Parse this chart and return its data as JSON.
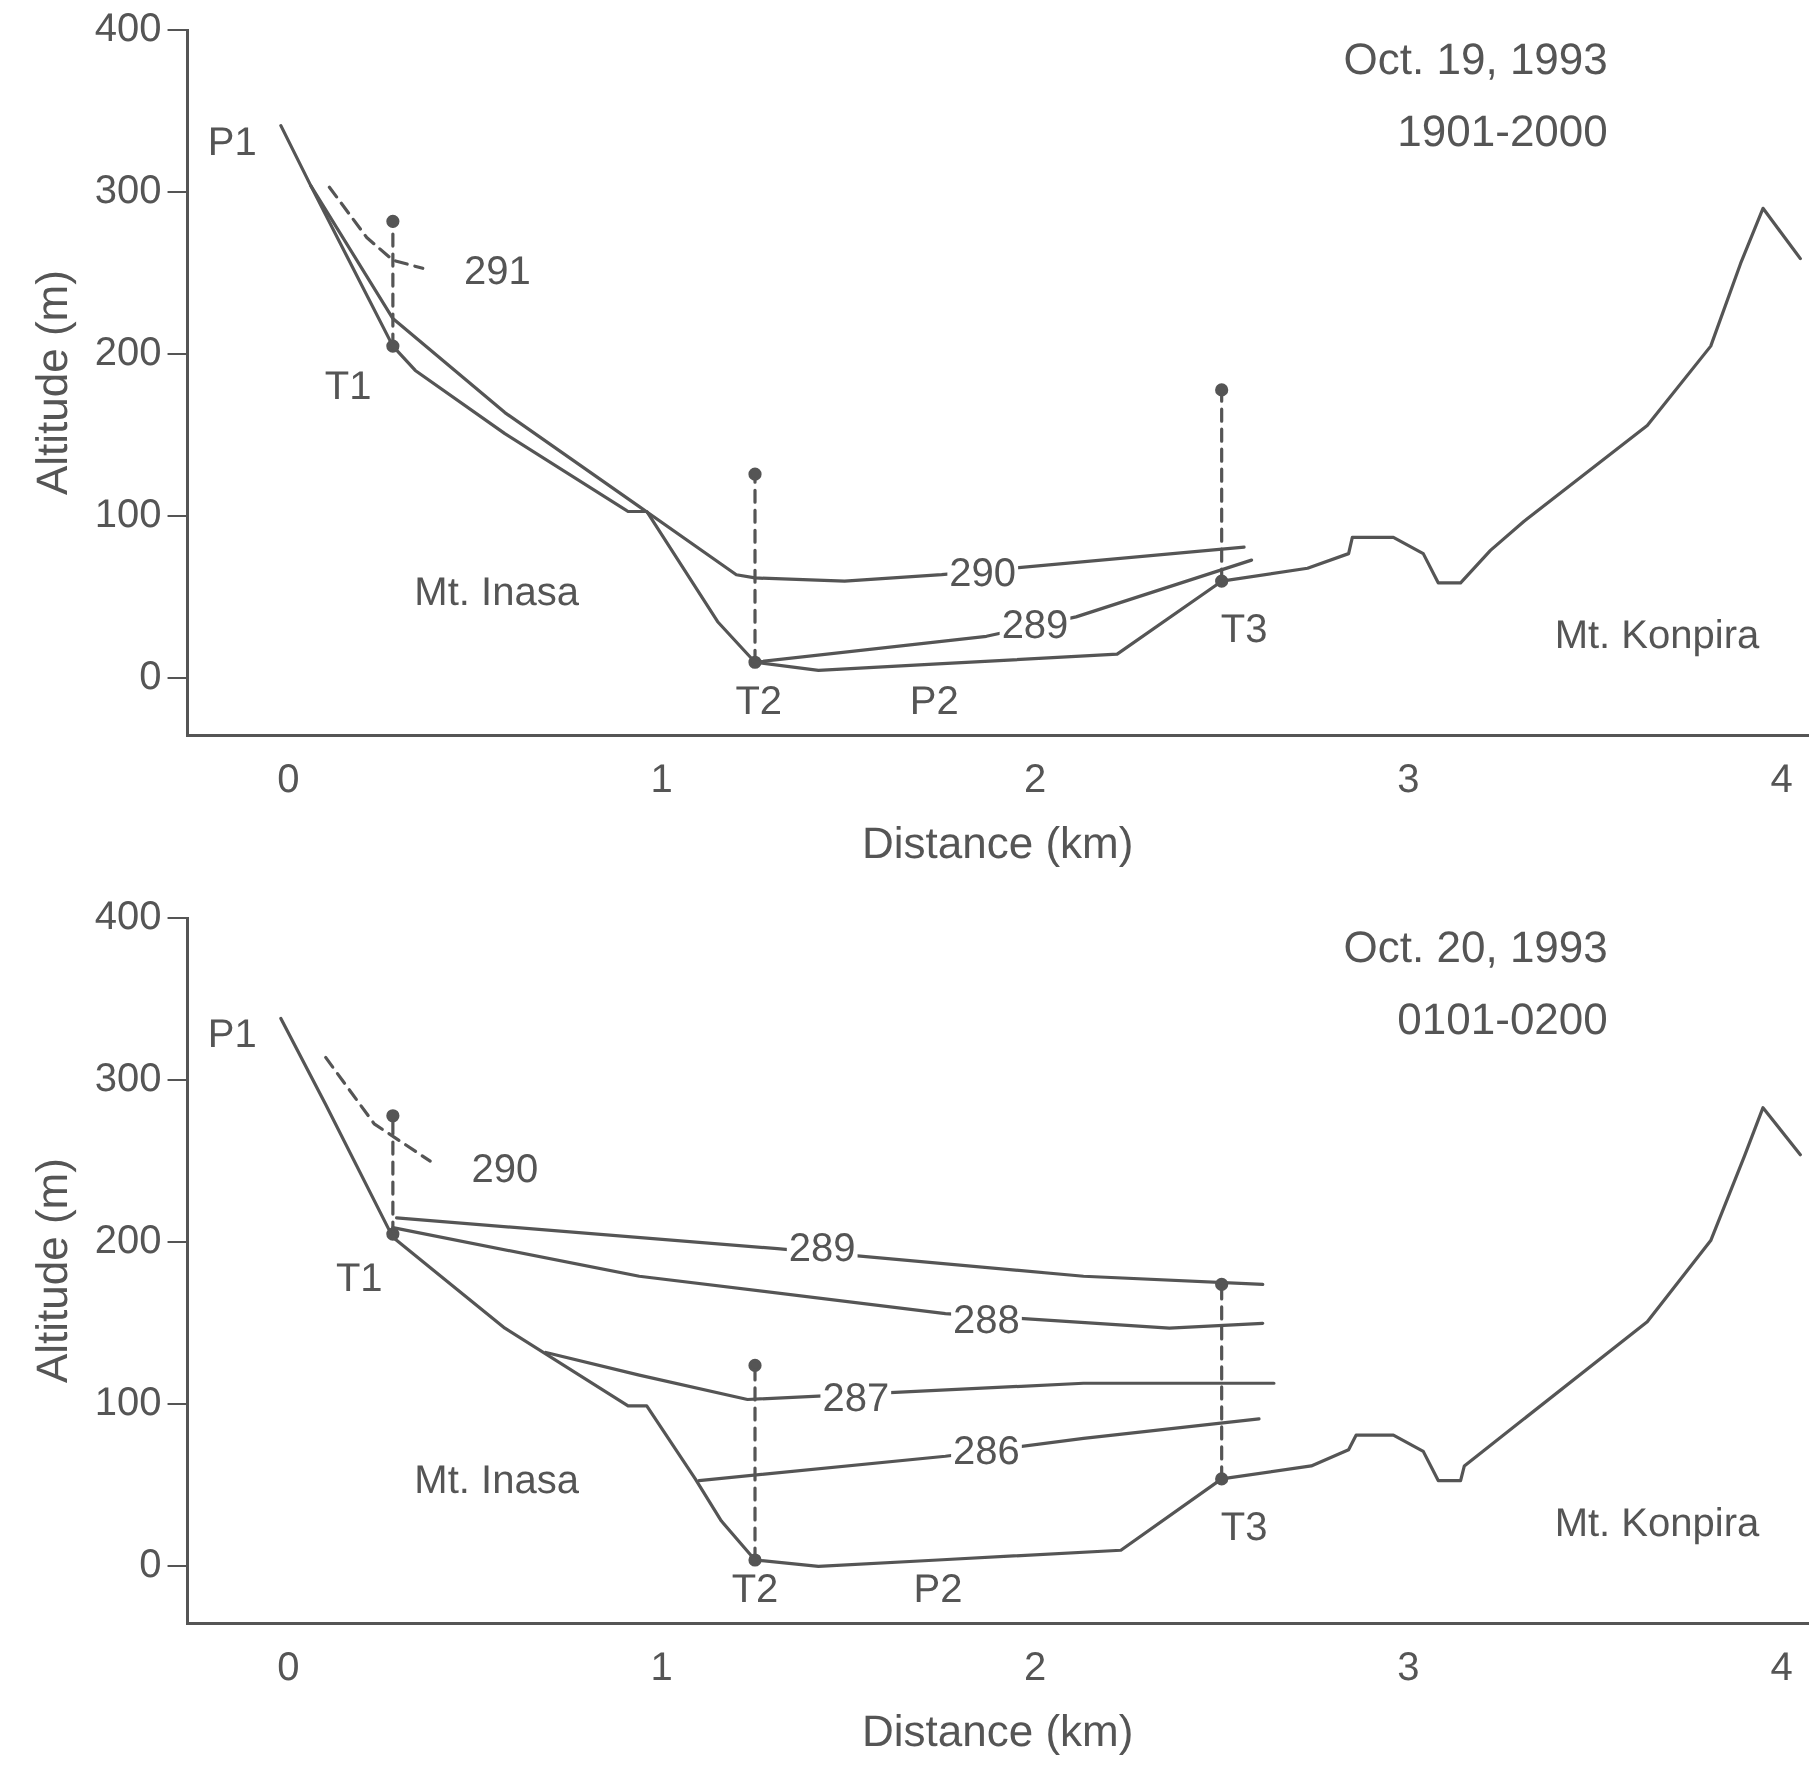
{
  "chart_data": [
    {
      "type": "line",
      "title": "Oct. 19, 1993",
      "subtitle": "1901-2000",
      "xlabel": "Distance (km)",
      "ylabel": "Altitude (m)",
      "xlim": [
        -0.27,
        4.07
      ],
      "ylim": [
        -35,
        400
      ],
      "xticks": [
        0,
        1,
        2,
        3,
        4
      ],
      "yticks": [
        0,
        100,
        200,
        300,
        400
      ],
      "grid": false,
      "legend": false,
      "series": [
        {
          "color": "#555555",
          "line_style": "solid",
          "marker": "none",
          "x": [
            -0.02,
            0.06,
            0.28,
            0.34,
            0.58,
            0.91,
            0.96,
            1.15,
            1.25,
            1.42,
            1.74,
            2.22,
            2.5,
            2.73,
            2.84,
            2.85,
            2.96,
            3.04,
            3.08,
            3.14,
            3.22,
            3.31,
            3.64,
            3.81,
            3.89,
            3.95,
            4.05
          ],
          "values": [
            341,
            304,
            205,
            190,
            151,
            103,
            103,
            35,
            10,
            5,
            9,
            15,
            60,
            68,
            77,
            87,
            87,
            77,
            59,
            59,
            79,
            97,
            156,
            205,
            256,
            290,
            259
          ]
        },
        {
          "color": "#555555",
          "line_style": "dashed",
          "marker": "none",
          "x": [
            0.11,
            0.21,
            0.28,
            0.36
          ],
          "values": [
            303,
            272,
            258,
            253
          ]
        },
        {
          "color": "#555555",
          "line_style": "solid",
          "marker": "none",
          "x": [
            0.06,
            0.28,
            0.58,
            0.94,
            1.2,
            1.25,
            1.49,
            1.75,
            2.56
          ],
          "values": [
            304,
            222,
            164,
            106,
            64,
            62,
            60,
            64,
            81
          ]
        },
        {
          "color": "#555555",
          "line_style": "solid",
          "marker": "none",
          "x": [
            1.25,
            1.87,
            2.11,
            2.58
          ],
          "values": [
            10,
            26,
            38,
            73
          ]
        },
        {
          "color": "#555555",
          "line_style": "dashed",
          "marker": "circle",
          "x": [
            0.28,
            0.28
          ],
          "values": [
            205,
            282
          ]
        },
        {
          "color": "#555555",
          "line_style": "dashed",
          "marker": "circle",
          "x": [
            1.25,
            1.25
          ],
          "values": [
            10,
            126
          ]
        },
        {
          "color": "#555555",
          "line_style": "dashed",
          "marker": "circle",
          "x": [
            2.5,
            2.5
          ],
          "values": [
            60,
            178
          ]
        }
      ],
      "annotations": [
        {
          "text": "P1",
          "x": -0.15,
          "y": 330
        },
        {
          "text": "T1",
          "x": 0.16,
          "y": 179
        },
        {
          "text": "T2",
          "x": 1.26,
          "y": -15
        },
        {
          "text": "P2",
          "x": 1.73,
          "y": -15
        },
        {
          "text": "T3",
          "x": 2.56,
          "y": 29
        },
        "Mt. Inasa",
        "Mt. Konpira",
        {
          "text": "291",
          "x": 0.56,
          "y": 250
        },
        {
          "text": "290",
          "x": 1.86,
          "y": 64
        },
        {
          "text": "289",
          "x": 2.0,
          "y": 32
        }
      ]
    },
    {
      "type": "line",
      "title": "Oct. 20, 1993",
      "subtitle": "0101-0200",
      "xlabel": "Distance (km)",
      "ylabel": "Altitude (m)",
      "xlim": [
        -0.27,
        4.07
      ],
      "ylim": [
        -35,
        400
      ],
      "xticks": [
        0,
        1,
        2,
        3,
        4
      ],
      "yticks": [
        0,
        100,
        200,
        300,
        400
      ],
      "grid": false,
      "legend": false,
      "series": [
        {
          "color": "#555555",
          "line_style": "solid",
          "marker": "none",
          "x": [
            -0.02,
            0.1,
            0.28,
            0.58,
            0.91,
            0.96,
            1.09,
            1.16,
            1.25,
            1.42,
            1.74,
            2.23,
            2.5,
            2.74,
            2.84,
            2.86,
            2.96,
            3.04,
            3.08,
            3.14,
            3.15,
            3.64,
            3.81,
            3.9,
            3.95,
            4.05
          ],
          "values": [
            338,
            285,
            203,
            147,
            99,
            99,
            54,
            28,
            4,
            0,
            4,
            10,
            54,
            62,
            72,
            81,
            81,
            71,
            53,
            53,
            62,
            151,
            201,
            253,
            283,
            254
          ]
        },
        {
          "color": "#555555",
          "line_style": "dashed",
          "marker": "none",
          "x": [
            0.1,
            0.23,
            0.38
          ],
          "values": [
            314,
            273,
            250
          ]
        },
        {
          "color": "#555555",
          "line_style": "solid",
          "marker": "none",
          "x": [
            0.29,
            1.31,
            2.13,
            2.61
          ],
          "values": [
            215,
            196,
            179,
            174
          ]
        },
        {
          "color": "#555555",
          "line_style": "solid",
          "marker": "none",
          "x": [
            0.28,
            0.94,
            1.76,
            2.36,
            2.61
          ],
          "values": [
            209,
            179,
            156,
            147,
            150
          ]
        },
        {
          "color": "#555555",
          "line_style": "solid",
          "marker": "none",
          "x": [
            0.69,
            0.94,
            1.23,
            2.13,
            2.64
          ],
          "values": [
            132,
            118,
            103,
            113,
            113
          ]
        },
        {
          "color": "#555555",
          "line_style": "solid",
          "marker": "none",
          "x": [
            1.1,
            1.76,
            2.13,
            2.6
          ],
          "values": [
            53,
            68,
            79,
            91
          ]
        },
        {
          "color": "#555555",
          "line_style": "dashed",
          "marker": "circle",
          "x": [
            0.28,
            0.28
          ],
          "values": [
            205,
            278
          ]
        },
        {
          "color": "#555555",
          "line_style": "dashed",
          "marker": "circle",
          "x": [
            1.25,
            1.25
          ],
          "values": [
            4,
            124
          ]
        },
        {
          "color": "#555555",
          "line_style": "dashed",
          "marker": "circle",
          "x": [
            2.5,
            2.5
          ],
          "values": [
            54,
            174
          ]
        }
      ],
      "annotations": [
        {
          "text": "P1",
          "x": -0.15,
          "y": 327
        },
        {
          "text": "T1",
          "x": 0.19,
          "y": 177
        },
        {
          "text": "T2",
          "x": 1.25,
          "y": -15
        },
        {
          "text": "P2",
          "x": 1.74,
          "y": -15
        },
        {
          "text": "T3",
          "x": 2.56,
          "y": 23
        },
        "Mt. Inasa",
        "Mt. Konpira",
        {
          "text": "290",
          "x": 0.58,
          "y": 244
        },
        {
          "text": "289",
          "x": 1.43,
          "y": 195
        },
        {
          "text": "288",
          "x": 1.87,
          "y": 151
        },
        {
          "text": "287",
          "x": 1.52,
          "y": 103
        },
        {
          "text": "286",
          "x": 1.87,
          "y": 70
        }
      ]
    }
  ]
}
